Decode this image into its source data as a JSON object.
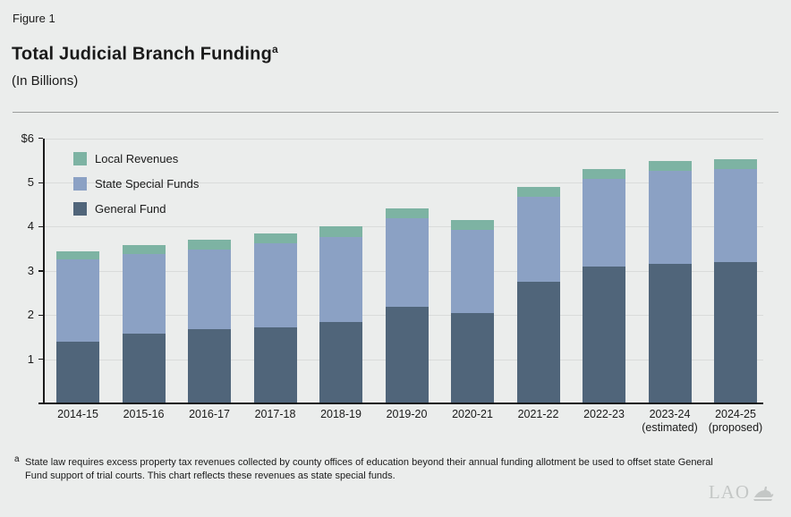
{
  "header": {
    "figure_label": "Figure 1",
    "title": "Total Judicial Branch Funding",
    "title_superscript": "a",
    "subtitle": "(In Billions)"
  },
  "chart_data": {
    "type": "bar",
    "stacked": true,
    "title": "Total Judicial Branch Funding",
    "subtitle": "(In Billions)",
    "unit": "billions of dollars",
    "categories": [
      "2014-15",
      "2015-16",
      "2016-17",
      "2017-18",
      "2018-19",
      "2019-20",
      "2020-21",
      "2021-22",
      "2022-23",
      "2023-24\n(estimated)",
      "2024-25\n(proposed)"
    ],
    "series": [
      {
        "name": "General Fund",
        "color": "#50657a",
        "values": [
          1.4,
          1.57,
          1.68,
          1.72,
          1.84,
          2.18,
          2.04,
          2.75,
          3.1,
          3.15,
          3.19
        ]
      },
      {
        "name": "State Special Funds",
        "color": "#8ba1c4",
        "values": [
          1.85,
          1.82,
          1.81,
          1.91,
          1.93,
          2.01,
          1.88,
          1.92,
          1.98,
          2.12,
          2.12
        ]
      },
      {
        "name": "Local Revenues",
        "color": "#7db3a3",
        "values": [
          0.2,
          0.2,
          0.21,
          0.22,
          0.23,
          0.22,
          0.22,
          0.22,
          0.23,
          0.22,
          0.21
        ]
      }
    ],
    "legend": [
      {
        "label": "Local Revenues",
        "color": "#7db3a3"
      },
      {
        "label": "State Special Funds",
        "color": "#8ba1c4"
      },
      {
        "label": "General Fund",
        "color": "#50657a"
      }
    ],
    "legend_position": "top-left inside plot",
    "y_ticks": [
      {
        "value": 6,
        "label": "$6"
      },
      {
        "value": 5,
        "label": "5"
      },
      {
        "value": 4,
        "label": "4"
      },
      {
        "value": 3,
        "label": "3"
      },
      {
        "value": 2,
        "label": "2"
      },
      {
        "value": 1,
        "label": "1"
      }
    ],
    "ylim": [
      0,
      6
    ],
    "grid": true,
    "xlabel": "",
    "ylabel": ""
  },
  "footnote": {
    "marker": "a",
    "text": "State law requires excess property tax revenues collected by county offices of education beyond their annual funding allotment be used to offset state General Fund support of trial courts. This chart reflects these revenues as state special funds."
  },
  "logo": {
    "text": "LAO"
  }
}
